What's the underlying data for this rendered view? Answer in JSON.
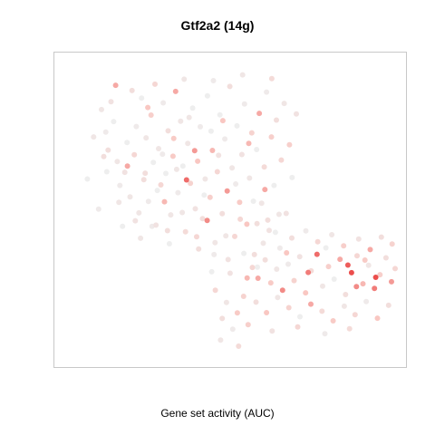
{
  "chart_data": {
    "type": "scatter",
    "title": "Gtf2a2 (14g)",
    "xlabel": "Gene set activity (AUC)",
    "ylabel": "",
    "xlim": [
      0,
      100
    ],
    "ylim": [
      0,
      100
    ],
    "grid": false,
    "colors": {
      "low": "#eeeeee",
      "mid": "#f9c7c2",
      "high": "#e8302f"
    },
    "point_value_range": [
      0,
      1
    ],
    "points": [
      [
        10.5,
        84.2,
        0.1
      ],
      [
        11.8,
        76.5,
        0.05
      ],
      [
        12.5,
        70.3,
        0.2
      ],
      [
        14.2,
        80.1,
        0.0
      ],
      [
        15.3,
        66.4,
        0.1
      ],
      [
        16.1,
        58.2,
        0.05
      ],
      [
        17.6,
        62.7,
        0.15
      ],
      [
        18.3,
        72.9,
        0.0
      ],
      [
        19.2,
        54.3,
        0.1
      ],
      [
        20.5,
        68.7,
        0.3
      ],
      [
        21.1,
        78.4,
        0.05
      ],
      [
        21.9,
        48.8,
        0.1
      ],
      [
        22.7,
        88.1,
        0.0
      ],
      [
        23.4,
        60.2,
        0.2
      ],
      [
        24.1,
        74.5,
        0.1
      ],
      [
        24.8,
        52.7,
        0.05
      ],
      [
        25.6,
        82.3,
        0.4
      ],
      [
        26.3,
        66.1,
        0.0
      ],
      [
        27.1,
        44.6,
        0.15
      ],
      [
        27.9,
        70.8,
        0.1
      ],
      [
        28.6,
        58.4,
        0.3
      ],
      [
        29.3,
        86.5,
        0.05
      ],
      [
        30.1,
        62.3,
        0.0
      ],
      [
        30.8,
        76.9,
        0.2
      ],
      [
        31.6,
        48.1,
        0.1
      ],
      [
        32.3,
        68.2,
        0.45
      ],
      [
        33.1,
        90.4,
        0.6
      ],
      [
        33.8,
        55.7,
        0.05
      ],
      [
        34.6,
        80.2,
        0.1
      ],
      [
        35.3,
        64.8,
        0.0
      ],
      [
        36.1,
        42.3,
        0.25
      ],
      [
        36.8,
        72.6,
        0.1
      ],
      [
        37.6,
        58.9,
        0.35
      ],
      [
        38.3,
        84.7,
        0.0
      ],
      [
        39.1,
        50.2,
        0.15
      ],
      [
        39.8,
        66.5,
        0.5
      ],
      [
        40.6,
        78.3,
        0.05
      ],
      [
        41.3,
        46.8,
        0.2
      ],
      [
        42.1,
        60.4,
        0.1
      ],
      [
        42.8,
        88.9,
        0.0
      ],
      [
        43.6,
        54.1,
        0.4
      ],
      [
        44.3,
        70.2,
        0.55
      ],
      [
        45.1,
        38.6,
        0.1
      ],
      [
        45.8,
        62.9,
        0.3
      ],
      [
        46.6,
        82.4,
        0.0
      ],
      [
        47.3,
        48.5,
        0.2
      ],
      [
        48.1,
        74.1,
        0.05
      ],
      [
        48.8,
        56.3,
        0.65
      ],
      [
        49.6,
        92.1,
        0.2
      ],
      [
        50.3,
        64.2,
        0.1
      ],
      [
        51.1,
        40.7,
        0.3
      ],
      [
        51.8,
        78.6,
        0.0
      ],
      [
        52.6,
        52.4,
        0.45
      ],
      [
        53.3,
        68.8,
        0.15
      ],
      [
        54.1,
        86.1,
        0.05
      ],
      [
        54.8,
        44.9,
        0.5
      ],
      [
        55.6,
        60.7,
        0.1
      ],
      [
        56.3,
        76.2,
        0.35
      ],
      [
        57.1,
        34.5,
        0.2
      ],
      [
        57.8,
        70.5,
        0.0
      ],
      [
        58.6,
        82.9,
        0.6
      ],
      [
        59.3,
        52.1,
        0.1
      ],
      [
        60.1,
        64.5,
        0.25
      ],
      [
        60.8,
        90.2,
        0.05
      ],
      [
        61.6,
        42.8,
        0.15
      ],
      [
        62.3,
        74.8,
        0.4
      ],
      [
        63.1,
        58.2,
        0.0
      ],
      [
        63.8,
        80.6,
        0.2
      ],
      [
        64.6,
        48.3,
        0.1
      ],
      [
        65.3,
        66.9,
        0.3
      ],
      [
        56.5,
        30.1,
        0.3
      ],
      [
        58.2,
        26.4,
        0.6
      ],
      [
        60.4,
        32.7,
        0.2
      ],
      [
        62.1,
        24.8,
        0.45
      ],
      [
        63.9,
        29.5,
        0.1
      ],
      [
        65.7,
        22.3,
        0.7
      ],
      [
        67.4,
        31.2,
        0.05
      ],
      [
        69.2,
        25.6,
        0.35
      ],
      [
        70.9,
        33.8,
        0.15
      ],
      [
        72.7,
        21.4,
        0.5
      ],
      [
        74.4,
        28.9,
        0.25
      ],
      [
        76.2,
        34.6,
        0.8
      ],
      [
        77.9,
        23.7,
        0.1
      ],
      [
        79.7,
        30.4,
        0.4
      ],
      [
        81.4,
        26.1,
        0.0
      ],
      [
        83.2,
        32.9,
        0.6
      ],
      [
        84.9,
        20.8,
        0.2
      ],
      [
        86.7,
        28.3,
        0.9
      ],
      [
        88.4,
        34.1,
        0.3
      ],
      [
        90.2,
        24.5,
        0.55
      ],
      [
        91.9,
        30.8,
        0.1
      ],
      [
        93.7,
        22.9,
        0.75
      ],
      [
        95.4,
        27.6,
        0.4
      ],
      [
        97.2,
        33.4,
        0.2
      ],
      [
        98.9,
        25.2,
        0.65
      ],
      [
        100.0,
        29.7,
        0.3
      ],
      [
        57.6,
        18.2,
        0.2
      ],
      [
        60.8,
        14.6,
        0.5
      ],
      [
        64.2,
        19.8,
        0.1
      ],
      [
        67.6,
        16.3,
        0.35
      ],
      [
        71.0,
        13.2,
        0.0
      ],
      [
        74.3,
        17.5,
        0.6
      ],
      [
        77.7,
        15.1,
        0.25
      ],
      [
        81.1,
        11.8,
        0.45
      ],
      [
        84.5,
        16.8,
        0.1
      ],
      [
        87.8,
        13.9,
        0.3
      ],
      [
        91.2,
        18.4,
        0.05
      ],
      [
        94.6,
        12.7,
        0.5
      ],
      [
        98.0,
        17.1,
        0.2
      ],
      [
        55.2,
        10.5,
        0.4
      ],
      [
        62.5,
        8.3,
        0.15
      ],
      [
        70.3,
        9.7,
        0.3
      ],
      [
        78.6,
        7.4,
        0.05
      ],
      [
        86.1,
        9.1,
        0.25
      ],
      [
        68.5,
        40.2,
        0.2
      ],
      [
        72.8,
        42.6,
        0.05
      ],
      [
        76.4,
        38.9,
        0.3
      ],
      [
        80.7,
        41.3,
        0.1
      ],
      [
        84.3,
        37.5,
        0.4
      ],
      [
        88.9,
        39.8,
        0.15
      ],
      [
        92.4,
        36.2,
        0.6
      ],
      [
        95.8,
        40.5,
        0.2
      ],
      [
        99.1,
        38.1,
        0.35
      ],
      [
        73.5,
        28.4,
        0.75
      ],
      [
        85.6,
        30.9,
        0.85
      ],
      [
        94.1,
        26.7,
        0.9
      ],
      [
        88.2,
        23.5,
        0.7
      ],
      [
        66.9,
        35.1,
        0.5
      ],
      [
        78.9,
        36.8,
        0.0
      ],
      [
        90.8,
        32.6,
        0.45
      ],
      [
        6.2,
        60.4,
        0.0
      ],
      [
        8.1,
        74.8,
        0.1
      ],
      [
        9.6,
        50.1,
        0.05
      ],
      [
        13.4,
        86.9,
        0.15
      ],
      [
        16.9,
        44.2,
        0.0
      ],
      [
        19.8,
        90.7,
        0.2
      ],
      [
        22.4,
        40.1,
        0.1
      ],
      [
        26.8,
        92.9,
        0.3
      ],
      [
        31.2,
        38.2,
        0.0
      ],
      [
        35.7,
        94.6,
        0.1
      ],
      [
        40.1,
        36.4,
        0.2
      ],
      [
        44.6,
        94.1,
        0.05
      ],
      [
        49.1,
        32.8,
        0.15
      ],
      [
        53.5,
        96.1,
        0.1
      ],
      [
        58.0,
        30.2,
        0.0
      ],
      [
        62.4,
        94.8,
        0.25
      ],
      [
        66.2,
        86.3,
        0.1
      ],
      [
        67.8,
        72.1,
        0.4
      ],
      [
        68.6,
        60.9,
        0.0
      ],
      [
        69.9,
        82.7,
        0.15
      ],
      [
        45.2,
        22.3,
        0.3
      ],
      [
        48.6,
        18.1,
        0.1
      ],
      [
        51.9,
        14.5,
        0.45
      ],
      [
        47.3,
        12.6,
        0.2
      ],
      [
        50.5,
        8.9,
        0.05
      ],
      [
        53.8,
        20.2,
        0.35
      ],
      [
        44.1,
        28.6,
        0.0
      ],
      [
        54.9,
        26.5,
        0.55
      ],
      [
        46.8,
        5.2,
        0.1
      ],
      [
        52.3,
        3.1,
        0.25
      ],
      [
        18.4,
        64.8,
        0.6
      ],
      [
        29.7,
        52.6,
        0.55
      ],
      [
        38.9,
        70.1,
        0.65
      ],
      [
        47.5,
        80.4,
        0.5
      ],
      [
        42.7,
        46.2,
        0.7
      ],
      [
        32.5,
        74.3,
        0.45
      ],
      [
        24.6,
        84.9,
        0.5
      ],
      [
        55.4,
        72.6,
        0.55
      ],
      [
        60.3,
        56.8,
        0.6
      ],
      [
        36.4,
        60.1,
        0.8
      ],
      [
        27.5,
        56.5,
        0.0
      ],
      [
        33.4,
        63.7,
        0.1
      ],
      [
        41.8,
        54.9,
        0.0
      ],
      [
        46.2,
        68.5,
        0.15
      ],
      [
        51.4,
        58.7,
        0.05
      ],
      [
        57.9,
        45.1,
        0.2
      ],
      [
        43.9,
        76.8,
        0.0
      ],
      [
        37.2,
        81.5,
        0.1
      ],
      [
        29.1,
        68.9,
        0.05
      ],
      [
        23.8,
        62.4,
        0.2
      ],
      [
        15.8,
        52.4,
        0.1
      ],
      [
        12.1,
        62.9,
        0.0
      ],
      [
        20.8,
        46.1,
        0.15
      ],
      [
        25.9,
        44.2,
        0.05
      ],
      [
        30.6,
        42.7,
        0.2
      ],
      [
        35.1,
        48.9,
        0.1
      ],
      [
        39.5,
        40.6,
        0.3
      ],
      [
        44.8,
        34.5,
        0.05
      ],
      [
        49.7,
        28.1,
        0.15
      ],
      [
        53.9,
        34.9,
        0.0
      ],
      [
        59.8,
        38.4,
        0.1
      ],
      [
        63.5,
        42.1,
        0.0
      ],
      [
        66.8,
        48.6,
        0.15
      ],
      [
        64.9,
        36.7,
        0.05
      ],
      [
        61.2,
        46.3,
        0.2
      ],
      [
        56.8,
        52.8,
        0.0
      ],
      [
        52.8,
        46.6,
        0.3
      ],
      [
        48.4,
        40.9,
        0.1
      ],
      [
        14.8,
        92.5,
        0.6
      ],
      [
        11.2,
        68.1,
        0.2
      ]
    ]
  }
}
